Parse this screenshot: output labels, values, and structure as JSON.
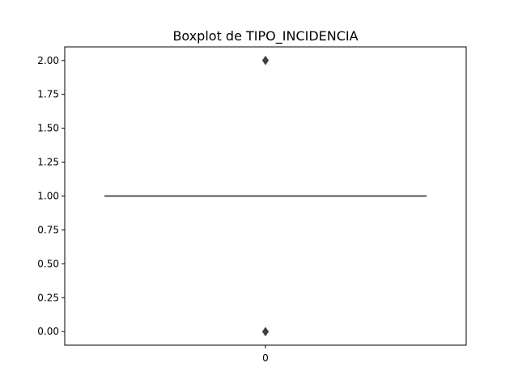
{
  "chart_data": {
    "type": "boxplot",
    "title": "Boxplot de TIPO_INCIDENCIA",
    "xlabel": "",
    "ylabel": "",
    "categories": [
      "0"
    ],
    "ylim": [
      -0.1,
      2.1
    ],
    "yticks": [
      0.0,
      0.25,
      0.5,
      0.75,
      1.0,
      1.25,
      1.5,
      1.75,
      2.0
    ],
    "ytick_labels": [
      "0.00",
      "0.25",
      "0.50",
      "0.75",
      "1.00",
      "1.25",
      "1.50",
      "1.75",
      "2.00"
    ],
    "grid": false,
    "boxes": [
      {
        "category": "0",
        "min": 1.0,
        "q1": 1.0,
        "median": 1.0,
        "q3": 1.0,
        "max": 1.0,
        "outliers": [
          0.0,
          2.0
        ]
      }
    ],
    "colors": {
      "box_line": "#3f3f3f",
      "outlier_fill": "#3f3f3f",
      "axes": "#000000"
    }
  }
}
